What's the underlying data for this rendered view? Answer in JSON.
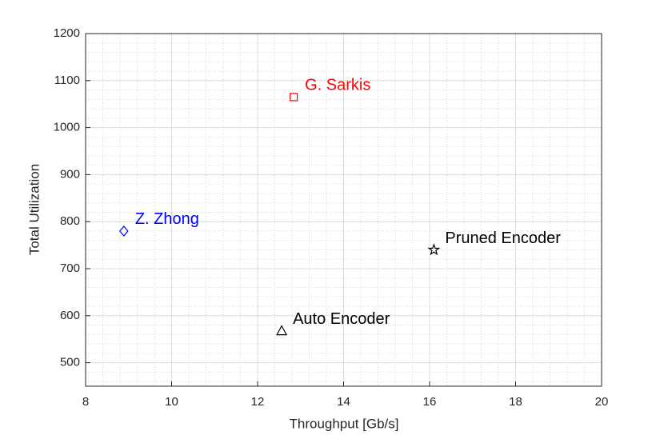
{
  "chart_data": {
    "type": "scatter",
    "xlabel": "Throughput [Gb/s]",
    "ylabel": "Total Utilization",
    "xlim": [
      8,
      20
    ],
    "xticks": [
      8,
      10,
      12,
      14,
      16,
      18,
      20
    ],
    "ylim": [
      450,
      1200
    ],
    "yticks": [
      500,
      600,
      700,
      800,
      900,
      1000,
      1100,
      1200
    ],
    "grid": true,
    "minor_grid": true,
    "series": [
      {
        "name": "G. Sarkis",
        "color": "#ff0000",
        "marker": "square",
        "x": [
          12.84
        ],
        "values": [
          1065
        ]
      },
      {
        "name": "Z. Zhong",
        "color": "#0000ff",
        "marker": "diamond",
        "x": [
          8.89
        ],
        "values": [
          780
        ]
      },
      {
        "name": "Pruned Encoder",
        "color": "#000000",
        "marker": "star",
        "x": [
          16.1
        ],
        "values": [
          740
        ]
      },
      {
        "name": "Auto Encoder",
        "color": "#000000",
        "marker": "triangle",
        "x": [
          12.56
        ],
        "values": [
          568
        ]
      }
    ]
  }
}
